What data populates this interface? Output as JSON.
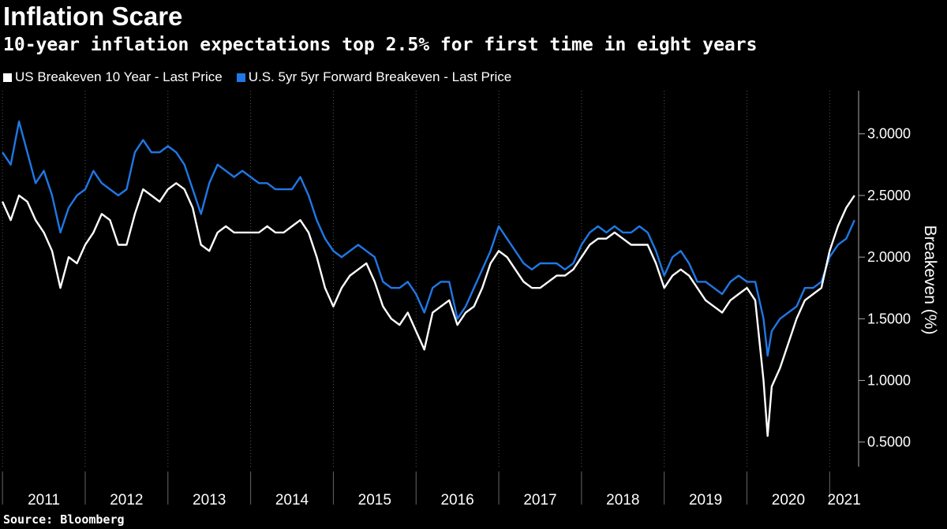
{
  "title": "Inflation Scare",
  "subtitle": "10-year inflation expectations top 2.5% for first time in eight years",
  "source": "Source: Bloomberg",
  "colors": {
    "series1": "#ffffff",
    "series2": "#1f78e6",
    "background": "#000000"
  },
  "chart_data": {
    "type": "line",
    "ylabel": "Breakeven (%)",
    "ylim": [
      0.3,
      3.35
    ],
    "yticks": [
      "0.5000",
      "1.0000",
      "1.5000",
      "2.0000",
      "2.5000",
      "3.0000"
    ],
    "ytick_values": [
      0.5,
      1.0,
      1.5,
      2.0,
      2.5,
      3.0
    ],
    "y_axis_side": "right",
    "xlim": [
      2010.97,
      2021.35
    ],
    "xticks": [
      "2011",
      "2012",
      "2013",
      "2014",
      "2015",
      "2016",
      "2017",
      "2018",
      "2019",
      "2020",
      "2021"
    ],
    "xtick_values": [
      2011.0,
      2012.0,
      2013.0,
      2014.0,
      2015.0,
      2016.0,
      2017.0,
      2018.0,
      2019.0,
      2020.0,
      2021.0
    ],
    "grid": "vertical dotted",
    "legend_position": "top-left",
    "series": [
      {
        "name": "US Breakeven 10 Year - Last Price",
        "x": [
          2011.0,
          2011.1,
          2011.2,
          2011.3,
          2011.4,
          2011.5,
          2011.6,
          2011.7,
          2011.8,
          2011.9,
          2012.0,
          2012.1,
          2012.2,
          2012.3,
          2012.4,
          2012.5,
          2012.6,
          2012.7,
          2012.8,
          2012.9,
          2013.0,
          2013.1,
          2013.2,
          2013.3,
          2013.4,
          2013.5,
          2013.6,
          2013.7,
          2013.8,
          2013.9,
          2014.0,
          2014.1,
          2014.2,
          2014.3,
          2014.4,
          2014.5,
          2014.6,
          2014.7,
          2014.8,
          2014.9,
          2015.0,
          2015.1,
          2015.2,
          2015.3,
          2015.4,
          2015.5,
          2015.6,
          2015.7,
          2015.8,
          2015.9,
          2016.0,
          2016.1,
          2016.2,
          2016.3,
          2016.4,
          2016.5,
          2016.6,
          2016.7,
          2016.8,
          2016.9,
          2017.0,
          2017.1,
          2017.2,
          2017.3,
          2017.4,
          2017.5,
          2017.6,
          2017.7,
          2017.8,
          2017.9,
          2018.0,
          2018.1,
          2018.2,
          2018.3,
          2018.4,
          2018.5,
          2018.6,
          2018.7,
          2018.8,
          2018.9,
          2019.0,
          2019.1,
          2019.2,
          2019.3,
          2019.4,
          2019.5,
          2019.6,
          2019.7,
          2019.8,
          2019.9,
          2020.0,
          2020.1,
          2020.2,
          2020.25,
          2020.3,
          2020.4,
          2020.5,
          2020.6,
          2020.7,
          2020.8,
          2020.9,
          2021.0,
          2021.1,
          2021.2,
          2021.3
        ],
        "values": [
          2.45,
          2.3,
          2.5,
          2.45,
          2.3,
          2.2,
          2.05,
          1.75,
          2.0,
          1.95,
          2.1,
          2.2,
          2.35,
          2.3,
          2.1,
          2.1,
          2.35,
          2.55,
          2.5,
          2.45,
          2.55,
          2.6,
          2.55,
          2.4,
          2.1,
          2.05,
          2.2,
          2.25,
          2.2,
          2.2,
          2.2,
          2.2,
          2.25,
          2.2,
          2.2,
          2.25,
          2.3,
          2.2,
          2.0,
          1.75,
          1.6,
          1.75,
          1.85,
          1.9,
          1.95,
          1.8,
          1.6,
          1.5,
          1.45,
          1.55,
          1.4,
          1.25,
          1.55,
          1.6,
          1.65,
          1.45,
          1.55,
          1.6,
          1.75,
          1.95,
          2.05,
          2.0,
          1.9,
          1.8,
          1.75,
          1.75,
          1.8,
          1.85,
          1.85,
          1.9,
          2.0,
          2.1,
          2.15,
          2.15,
          2.2,
          2.15,
          2.1,
          2.1,
          2.1,
          1.95,
          1.75,
          1.85,
          1.9,
          1.85,
          1.75,
          1.65,
          1.6,
          1.55,
          1.65,
          1.7,
          1.75,
          1.65,
          1.0,
          0.55,
          0.95,
          1.1,
          1.3,
          1.5,
          1.65,
          1.7,
          1.75,
          2.05,
          2.25,
          2.4,
          2.5
        ]
      },
      {
        "name": "U.S. 5yr 5yr Forward Breakeven - Last Price",
        "x": [
          2011.0,
          2011.1,
          2011.2,
          2011.3,
          2011.4,
          2011.5,
          2011.6,
          2011.7,
          2011.8,
          2011.9,
          2012.0,
          2012.1,
          2012.2,
          2012.3,
          2012.4,
          2012.5,
          2012.6,
          2012.7,
          2012.8,
          2012.9,
          2013.0,
          2013.1,
          2013.2,
          2013.3,
          2013.4,
          2013.5,
          2013.6,
          2013.7,
          2013.8,
          2013.9,
          2014.0,
          2014.1,
          2014.2,
          2014.3,
          2014.4,
          2014.5,
          2014.6,
          2014.7,
          2014.8,
          2014.9,
          2015.0,
          2015.1,
          2015.2,
          2015.3,
          2015.4,
          2015.5,
          2015.6,
          2015.7,
          2015.8,
          2015.9,
          2016.0,
          2016.1,
          2016.2,
          2016.3,
          2016.4,
          2016.5,
          2016.6,
          2016.7,
          2016.8,
          2016.9,
          2017.0,
          2017.1,
          2017.2,
          2017.3,
          2017.4,
          2017.5,
          2017.6,
          2017.7,
          2017.8,
          2017.9,
          2018.0,
          2018.1,
          2018.2,
          2018.3,
          2018.4,
          2018.5,
          2018.6,
          2018.7,
          2018.8,
          2018.9,
          2019.0,
          2019.1,
          2019.2,
          2019.3,
          2019.4,
          2019.5,
          2019.6,
          2019.7,
          2019.8,
          2019.9,
          2020.0,
          2020.1,
          2020.2,
          2020.25,
          2020.3,
          2020.4,
          2020.5,
          2020.6,
          2020.7,
          2020.8,
          2020.9,
          2021.0,
          2021.1,
          2021.2,
          2021.3
        ],
        "values": [
          2.85,
          2.75,
          3.1,
          2.85,
          2.6,
          2.7,
          2.5,
          2.2,
          2.4,
          2.5,
          2.55,
          2.7,
          2.6,
          2.55,
          2.5,
          2.55,
          2.85,
          2.95,
          2.85,
          2.85,
          2.9,
          2.85,
          2.75,
          2.55,
          2.35,
          2.6,
          2.75,
          2.7,
          2.65,
          2.7,
          2.65,
          2.6,
          2.6,
          2.55,
          2.55,
          2.55,
          2.65,
          2.5,
          2.3,
          2.15,
          2.05,
          2.0,
          2.05,
          2.1,
          2.05,
          2.0,
          1.8,
          1.75,
          1.75,
          1.8,
          1.7,
          1.55,
          1.75,
          1.8,
          1.8,
          1.5,
          1.6,
          1.75,
          1.9,
          2.05,
          2.25,
          2.15,
          2.05,
          1.95,
          1.9,
          1.95,
          1.95,
          1.95,
          1.9,
          1.95,
          2.1,
          2.2,
          2.25,
          2.2,
          2.25,
          2.2,
          2.2,
          2.25,
          2.2,
          2.05,
          1.85,
          2.0,
          2.05,
          1.95,
          1.8,
          1.8,
          1.75,
          1.7,
          1.8,
          1.85,
          1.8,
          1.8,
          1.5,
          1.2,
          1.4,
          1.5,
          1.55,
          1.6,
          1.75,
          1.75,
          1.8,
          2.0,
          2.1,
          2.15,
          2.3
        ]
      }
    ]
  }
}
